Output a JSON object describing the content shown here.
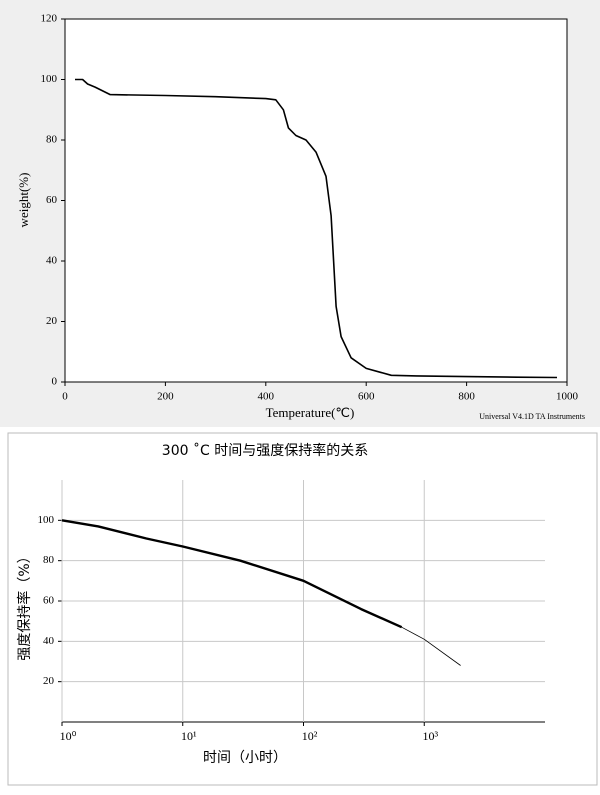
{
  "chart_data": [
    {
      "type": "line",
      "x_label": "Temperature(℃)",
      "y_label": "weight(%)",
      "annotation": "Universal V4.1D TA Instruments",
      "xlim": [
        0,
        1000
      ],
      "ylim": [
        0,
        120
      ],
      "xticks": [
        0,
        200,
        400,
        600,
        800,
        1000
      ],
      "yticks": [
        0,
        20,
        40,
        60,
        80,
        100,
        120
      ],
      "grid": false,
      "series": [
        {
          "color": "#000000",
          "x": [
            20,
            35,
            45,
            60,
            90,
            200,
            300,
            400,
            420,
            435,
            445,
            460,
            480,
            500,
            520,
            530,
            535,
            540,
            550,
            570,
            600,
            650,
            700,
            800,
            900,
            980
          ],
          "values": [
            100,
            100,
            98.5,
            97.5,
            95,
            94.7,
            94.3,
            93.7,
            93.3,
            90,
            84,
            81.5,
            80,
            76,
            68,
            55,
            40,
            25,
            15,
            8,
            4.5,
            2.2,
            2,
            1.8,
            1.6,
            1.5
          ]
        }
      ]
    },
    {
      "type": "line",
      "title": "300 ˚C  时间与强度保持率的关系",
      "x_label": "时间（小时）",
      "y_label": "强度保持率（%）",
      "xscale": "log",
      "xlim": [
        1,
        10000
      ],
      "ylim": [
        0,
        120
      ],
      "xticks": [
        {
          "value": 1,
          "label": "10⁰"
        },
        {
          "value": 10,
          "label": "10¹"
        },
        {
          "value": 100,
          "label": "10²"
        },
        {
          "value": 1000,
          "label": "10³"
        }
      ],
      "yticks": [
        20,
        40,
        60,
        80,
        100
      ],
      "grid": true,
      "series": [
        {
          "color": "#000000",
          "x": [
            1,
            2,
            5,
            10,
            30,
            100,
            300,
            650
          ],
          "values": [
            100,
            97,
            91,
            87,
            80,
            70,
            56,
            47
          ]
        },
        {
          "color": "#000000",
          "x": [
            650,
            1000,
            2000
          ],
          "values": [
            47,
            41,
            28
          ]
        }
      ]
    }
  ]
}
